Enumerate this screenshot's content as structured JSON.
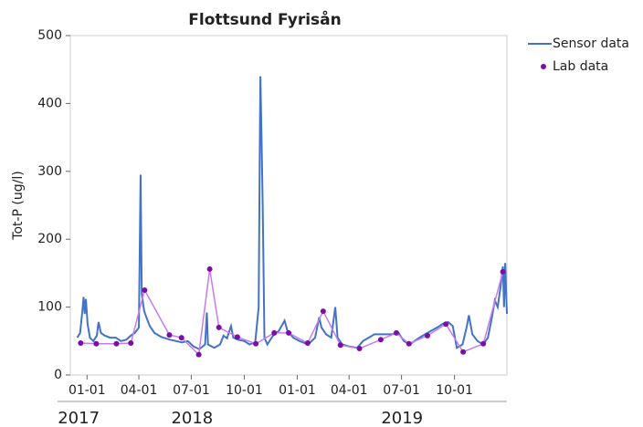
{
  "chart_data": {
    "type": "line",
    "title": "Flottsund Fyrisån",
    "y_label": "Tot-P (ug/l)",
    "xlim": [
      "2017-12-03",
      "2019-12-31"
    ],
    "xticks": [
      {
        "value": "2018-01-01",
        "label": "01-01"
      },
      {
        "value": "2018-04-01",
        "label": "04-01"
      },
      {
        "value": "2018-07-01",
        "label": "07-01"
      },
      {
        "value": "2018-10-01",
        "label": "10-01"
      },
      {
        "value": "2019-01-01",
        "label": "01-01"
      },
      {
        "value": "2019-04-01",
        "label": "04-01"
      },
      {
        "value": "2019-07-01",
        "label": "07-01"
      },
      {
        "value": "2019-10-01",
        "label": "10-01"
      }
    ],
    "years": [
      "2017",
      "2018",
      "2019"
    ],
    "ylim": [
      0,
      500
    ],
    "yticks": [
      0,
      100,
      200,
      300,
      400,
      500
    ],
    "grid": false,
    "legend": "right-top",
    "series": [
      {
        "name": "Sensor data",
        "color": "#4472c4",
        "mode": "line",
        "x": [
          "2017-12-15",
          "2017-12-20",
          "2017-12-24",
          "2017-12-26",
          "2017-12-28",
          "2017-12-30",
          "2018-01-02",
          "2018-01-06",
          "2018-01-12",
          "2018-01-18",
          "2018-01-21",
          "2018-01-25",
          "2018-02-01",
          "2018-02-10",
          "2018-02-20",
          "2018-03-01",
          "2018-03-10",
          "2018-03-18",
          "2018-03-25",
          "2018-04-01",
          "2018-04-04",
          "2018-04-06",
          "2018-04-10",
          "2018-04-14",
          "2018-04-20",
          "2018-04-28",
          "2018-05-10",
          "2018-05-25",
          "2018-06-05",
          "2018-06-15",
          "2018-06-25",
          "2018-07-05",
          "2018-07-15",
          "2018-07-25",
          "2018-07-28",
          "2018-07-30",
          "2018-08-10",
          "2018-08-20",
          "2018-08-26",
          "2018-09-01",
          "2018-09-08",
          "2018-09-12",
          "2018-09-20",
          "2018-10-01",
          "2018-10-10",
          "2018-10-20",
          "2018-10-26",
          "2018-10-28",
          "2018-10-29",
          "2018-10-31",
          "2018-11-02",
          "2018-11-05",
          "2018-11-10",
          "2018-11-20",
          "2018-11-30",
          "2018-12-10",
          "2018-12-15",
          "2018-12-25",
          "2019-01-05",
          "2019-01-20",
          "2019-02-01",
          "2019-02-08",
          "2019-02-12",
          "2019-02-20",
          "2019-03-01",
          "2019-03-08",
          "2019-03-12",
          "2019-03-20",
          "2019-04-01",
          "2019-04-15",
          "2019-04-25",
          "2019-05-05",
          "2019-05-15",
          "2019-06-01",
          "2019-06-15",
          "2019-06-25",
          "2019-07-05",
          "2019-07-15",
          "2019-08-01",
          "2019-08-15",
          "2019-09-01",
          "2019-09-10",
          "2019-09-20",
          "2019-09-28",
          "2019-10-05",
          "2019-10-15",
          "2019-10-22",
          "2019-10-26",
          "2019-11-01",
          "2019-11-10",
          "2019-11-20",
          "2019-11-28",
          "2019-12-05",
          "2019-12-10",
          "2019-12-15",
          "2019-12-20",
          "2019-12-24",
          "2019-12-26",
          "2019-12-28",
          "2019-12-31"
        ],
        "values": [
          55,
          62,
          95,
          115,
          90,
          112,
          75,
          55,
          50,
          58,
          78,
          62,
          58,
          55,
          55,
          50,
          52,
          58,
          62,
          70,
          295,
          120,
          95,
          85,
          72,
          62,
          56,
          52,
          50,
          48,
          50,
          42,
          38,
          45,
          92,
          45,
          40,
          45,
          58,
          54,
          72,
          55,
          52,
          50,
          45,
          48,
          100,
          340,
          440,
          350,
          250,
          55,
          45,
          58,
          65,
          80,
          65,
          55,
          50,
          45,
          55,
          85,
          70,
          60,
          55,
          100,
          55,
          45,
          42,
          40,
          50,
          55,
          60,
          60,
          60,
          63,
          50,
          45,
          55,
          62,
          70,
          75,
          78,
          72,
          40,
          45,
          70,
          88,
          60,
          50,
          45,
          55,
          85,
          110,
          100,
          130,
          160,
          100,
          165,
          90
        ]
      },
      {
        "name": "Lab data",
        "color": "#7a0fa8",
        "line_color": "#c57cf2",
        "mode": "markers+line",
        "x": [
          "2017-12-21",
          "2018-01-17",
          "2018-02-21",
          "2018-03-18",
          "2018-04-11",
          "2018-05-24",
          "2018-06-14",
          "2018-07-14",
          "2018-08-02",
          "2018-08-18",
          "2018-09-19",
          "2018-10-21",
          "2018-11-22",
          "2018-12-17",
          "2019-01-19",
          "2019-02-15",
          "2019-03-17",
          "2019-04-19",
          "2019-05-26",
          "2019-06-22",
          "2019-07-14",
          "2019-08-15",
          "2019-09-16",
          "2019-10-16",
          "2019-11-20",
          "2019-12-24"
        ],
        "values": [
          47,
          46,
          46,
          47,
          125,
          59,
          55,
          30,
          156,
          70,
          56,
          46,
          62,
          62,
          47,
          94,
          44,
          39,
          52,
          62,
          46,
          58,
          75,
          34,
          46,
          152
        ]
      }
    ]
  }
}
